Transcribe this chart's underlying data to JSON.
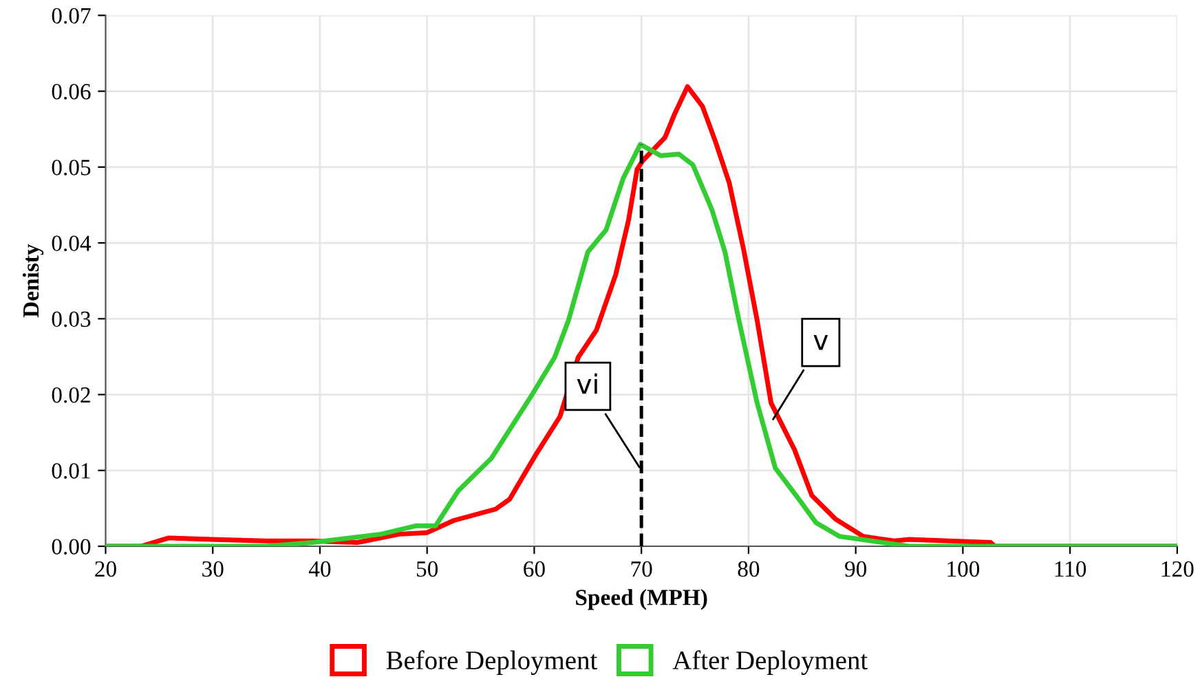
{
  "chart_data": {
    "type": "line",
    "xlabel": "Speed (MPH)",
    "ylabel": "Denisty",
    "xlim": [
      20,
      120
    ],
    "xticks": [
      20,
      30,
      40,
      50,
      60,
      70,
      80,
      90,
      100,
      110,
      120
    ],
    "ylim": [
      0,
      0.07
    ],
    "yticks": [
      {
        "value": 0,
        "label": "0.00"
      },
      {
        "value": 0.01,
        "label": "0.01"
      },
      {
        "value": 0.02,
        "label": "0.02"
      },
      {
        "value": 0.03,
        "label": "0.03"
      },
      {
        "value": 0.04,
        "label": "0.04"
      },
      {
        "value": 0.05,
        "label": "0.05"
      },
      {
        "value": 0.06,
        "label": "0.06"
      },
      {
        "value": 0.07,
        "label": "0.07"
      }
    ],
    "grid": true,
    "legend": "bottom",
    "marker": "none",
    "line_style": "solid",
    "series": [
      {
        "name": "Before Deployment",
        "color": "#ff0000",
        "x": [
          20,
          23.3,
          25.9,
          29.8,
          34.9,
          39.3,
          43.5,
          47.4,
          50.0,
          52.5,
          56.4,
          57.7,
          60.2,
          62.4,
          64.1,
          65.8,
          67.6,
          68.8,
          69.6,
          70.1,
          72.2,
          73.1,
          74.3,
          75.7,
          76.9,
          78.2,
          79.5,
          80.8,
          82.1,
          84.3,
          85.9,
          88.1,
          90.7,
          93.6,
          94.9,
          102.6,
          103,
          120
        ],
        "values": [
          0,
          0,
          0.0011,
          0.0009,
          0.0007,
          0.0007,
          0.0005,
          0.0016,
          0.0018,
          0.0034,
          0.0049,
          0.0062,
          0.0122,
          0.0171,
          0.0249,
          0.0285,
          0.0358,
          0.043,
          0.0497,
          0.0508,
          0.0539,
          0.057,
          0.0606,
          0.058,
          0.0534,
          0.0479,
          0.0394,
          0.0298,
          0.0189,
          0.0127,
          0.0067,
          0.0036,
          0.0013,
          0.0007,
          0.0009,
          0.0005,
          0,
          0
        ]
      },
      {
        "name": "After Deployment",
        "color": "#33cc33",
        "x": [
          20,
          35,
          39.3,
          45.7,
          49.0,
          50.8,
          52.9,
          56.0,
          59.8,
          61.9,
          63.2,
          65.0,
          66.7,
          68.3,
          69.9,
          71.8,
          73.5,
          74.8,
          76.6,
          77.8,
          79.1,
          80.8,
          82.5,
          84.7,
          86.3,
          88.5,
          91.5,
          95,
          120
        ],
        "values": [
          0,
          0,
          0.0005,
          0.0016,
          0.0027,
          0.0027,
          0.0073,
          0.0116,
          0.02,
          0.0249,
          0.0298,
          0.0388,
          0.0417,
          0.0485,
          0.053,
          0.0515,
          0.0517,
          0.0503,
          0.0443,
          0.0388,
          0.0298,
          0.0189,
          0.0103,
          0.0062,
          0.0031,
          0.0013,
          0.0007,
          0,
          0
        ]
      }
    ],
    "ref_lines": [
      {
        "axis": "x",
        "value": 70,
        "color": "#000000",
        "line_style": "dashed"
      }
    ],
    "annotations": [
      {
        "text": "vi",
        "x": 70,
        "y": 0.01
      },
      {
        "text": "v",
        "x": 82.1,
        "y": 0.0163
      }
    ]
  }
}
